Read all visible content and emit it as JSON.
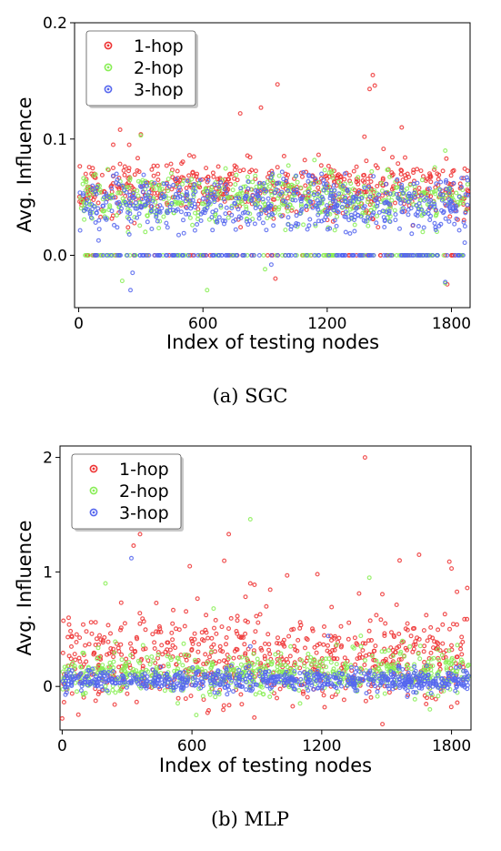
{
  "chart_data": [
    {
      "type": "scatter",
      "panel": "top",
      "caption": "(a)  SGC",
      "xlabel": "Index of testing nodes",
      "ylabel": "Avg. Influence",
      "xlim": [
        -20,
        1890
      ],
      "ylim": [
        -0.045,
        0.2
      ],
      "xticks": [
        0,
        600,
        1200,
        1800
      ],
      "xtick_labels": [
        "0",
        "600",
        "1200",
        "1800"
      ],
      "yticks": [
        0.0,
        0.1,
        0.2
      ],
      "ytick_labels": [
        "0.0",
        "0.1",
        "0.2"
      ],
      "legend_position": "top-left",
      "series": [
        {
          "name": "1-hop",
          "color": "#ee3333",
          "gen": {
            "n": 620,
            "mean": 0.058,
            "sd": 0.012,
            "zero_frac": 0.08,
            "seed": 11
          },
          "outliers": [
            [
              960,
              0.147
            ],
            [
              1420,
              0.155
            ],
            [
              1405,
              0.143
            ],
            [
              1430,
              0.146
            ],
            [
              880,
              0.127
            ],
            [
              780,
              0.122
            ],
            [
              1560,
              0.11
            ],
            [
              200,
              0.108
            ],
            [
              300,
              0.104
            ],
            [
              950,
              -0.02
            ],
            [
              1780,
              -0.025
            ],
            [
              1380,
              0.102
            ]
          ]
        },
        {
          "name": "2-hop",
          "color": "#88ee55",
          "gen": {
            "n": 620,
            "mean": 0.048,
            "sd": 0.011,
            "zero_frac": 0.12,
            "seed": 23
          },
          "outliers": [
            [
              620,
              -0.03
            ],
            [
              1770,
              -0.024
            ],
            [
              210,
              -0.022
            ],
            [
              300,
              0.103
            ],
            [
              1770,
              0.09
            ],
            [
              900,
              -0.012
            ]
          ]
        },
        {
          "name": "3-hop",
          "color": "#5566ee",
          "gen": {
            "n": 680,
            "mean": 0.045,
            "sd": 0.011,
            "zero_frac": 0.18,
            "seed": 37
          },
          "outliers": [
            [
              250,
              -0.03
            ],
            [
              260,
              -0.015
            ],
            [
              1770,
              -0.023
            ],
            [
              930,
              -0.008
            ]
          ]
        }
      ]
    },
    {
      "type": "scatter",
      "panel": "bottom",
      "caption": "(b)  MLP",
      "xlabel": "Index of testing nodes",
      "ylabel": "Avg. Influence",
      "xlim": [
        -10,
        1890
      ],
      "ylim": [
        -0.38,
        2.1
      ],
      "xticks": [
        0,
        600,
        1200,
        1800
      ],
      "xtick_labels": [
        "0",
        "600",
        "1200",
        "1800"
      ],
      "yticks": [
        0,
        1,
        2
      ],
      "ytick_labels": [
        "0",
        "1",
        "2"
      ],
      "legend_position": "top-left",
      "series": [
        {
          "name": "1-hop",
          "color": "#ee3333",
          "gen": {
            "n": 650,
            "mean": 0.2,
            "sd": 0.18,
            "zero_frac": 0.0,
            "seed": 51
          },
          "outliers": [
            [
              1400,
              2.0
            ],
            [
              360,
              1.33
            ],
            [
              770,
              1.33
            ],
            [
              1560,
              1.1
            ],
            [
              1650,
              1.15
            ],
            [
              1790,
              1.09
            ],
            [
              330,
              1.23
            ],
            [
              590,
              1.05
            ],
            [
              1040,
              0.97
            ],
            [
              1800,
              1.03
            ],
            [
              0,
              -0.28
            ],
            [
              30,
              0.6
            ],
            [
              870,
              0.9
            ],
            [
              1180,
              0.98
            ]
          ]
        },
        {
          "name": "2-hop",
          "color": "#88ee55",
          "gen": {
            "n": 620,
            "mean": 0.1,
            "sd": 0.08,
            "zero_frac": 0.0,
            "seed": 63
          },
          "outliers": [
            [
              870,
              1.46
            ],
            [
              1420,
              0.95
            ],
            [
              200,
              0.9
            ],
            [
              1700,
              -0.2
            ],
            [
              700,
              0.68
            ],
            [
              620,
              -0.25
            ]
          ]
        },
        {
          "name": "3-hop",
          "color": "#5566ee",
          "gen": {
            "n": 700,
            "mean": 0.04,
            "sd": 0.04,
            "zero_frac": 0.0,
            "seed": 77
          },
          "outliers": [
            [
              320,
              1.12
            ],
            [
              1230,
              0.44
            ],
            [
              870,
              0.35
            ]
          ]
        }
      ]
    }
  ]
}
